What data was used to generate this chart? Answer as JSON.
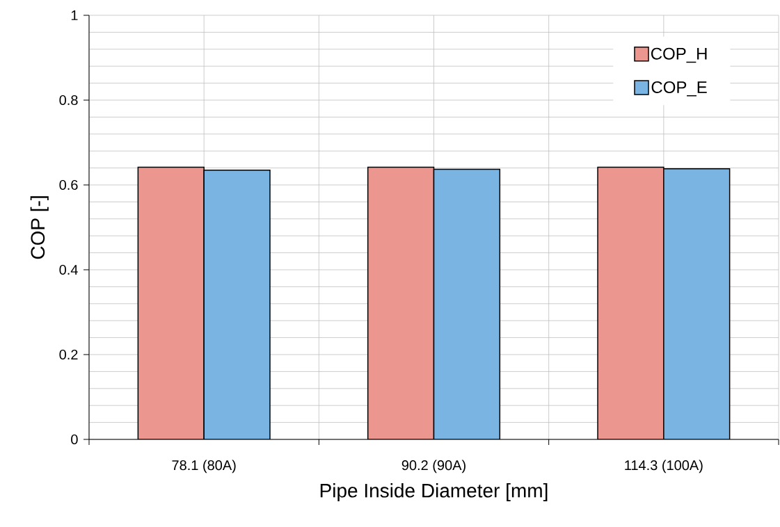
{
  "chart_data": {
    "type": "bar",
    "xlabel": "Pipe Inside Diameter [mm]",
    "ylabel": "COP [-]",
    "categories": [
      "78.1 (80A)",
      "90.2 (90A)",
      "114.3 (100A)"
    ],
    "series": [
      {
        "name": "COP_H",
        "color": "#ec9690",
        "values": [
          0.642,
          0.642,
          0.642
        ]
      },
      {
        "name": "COP_E",
        "color": "#7ab4e3",
        "values": [
          0.635,
          0.637,
          0.638
        ]
      }
    ],
    "ylim": [
      0,
      1
    ],
    "yticks": [
      0,
      0.2,
      0.4,
      0.6,
      0.8,
      1
    ],
    "grid": true,
    "legend": "top right"
  }
}
